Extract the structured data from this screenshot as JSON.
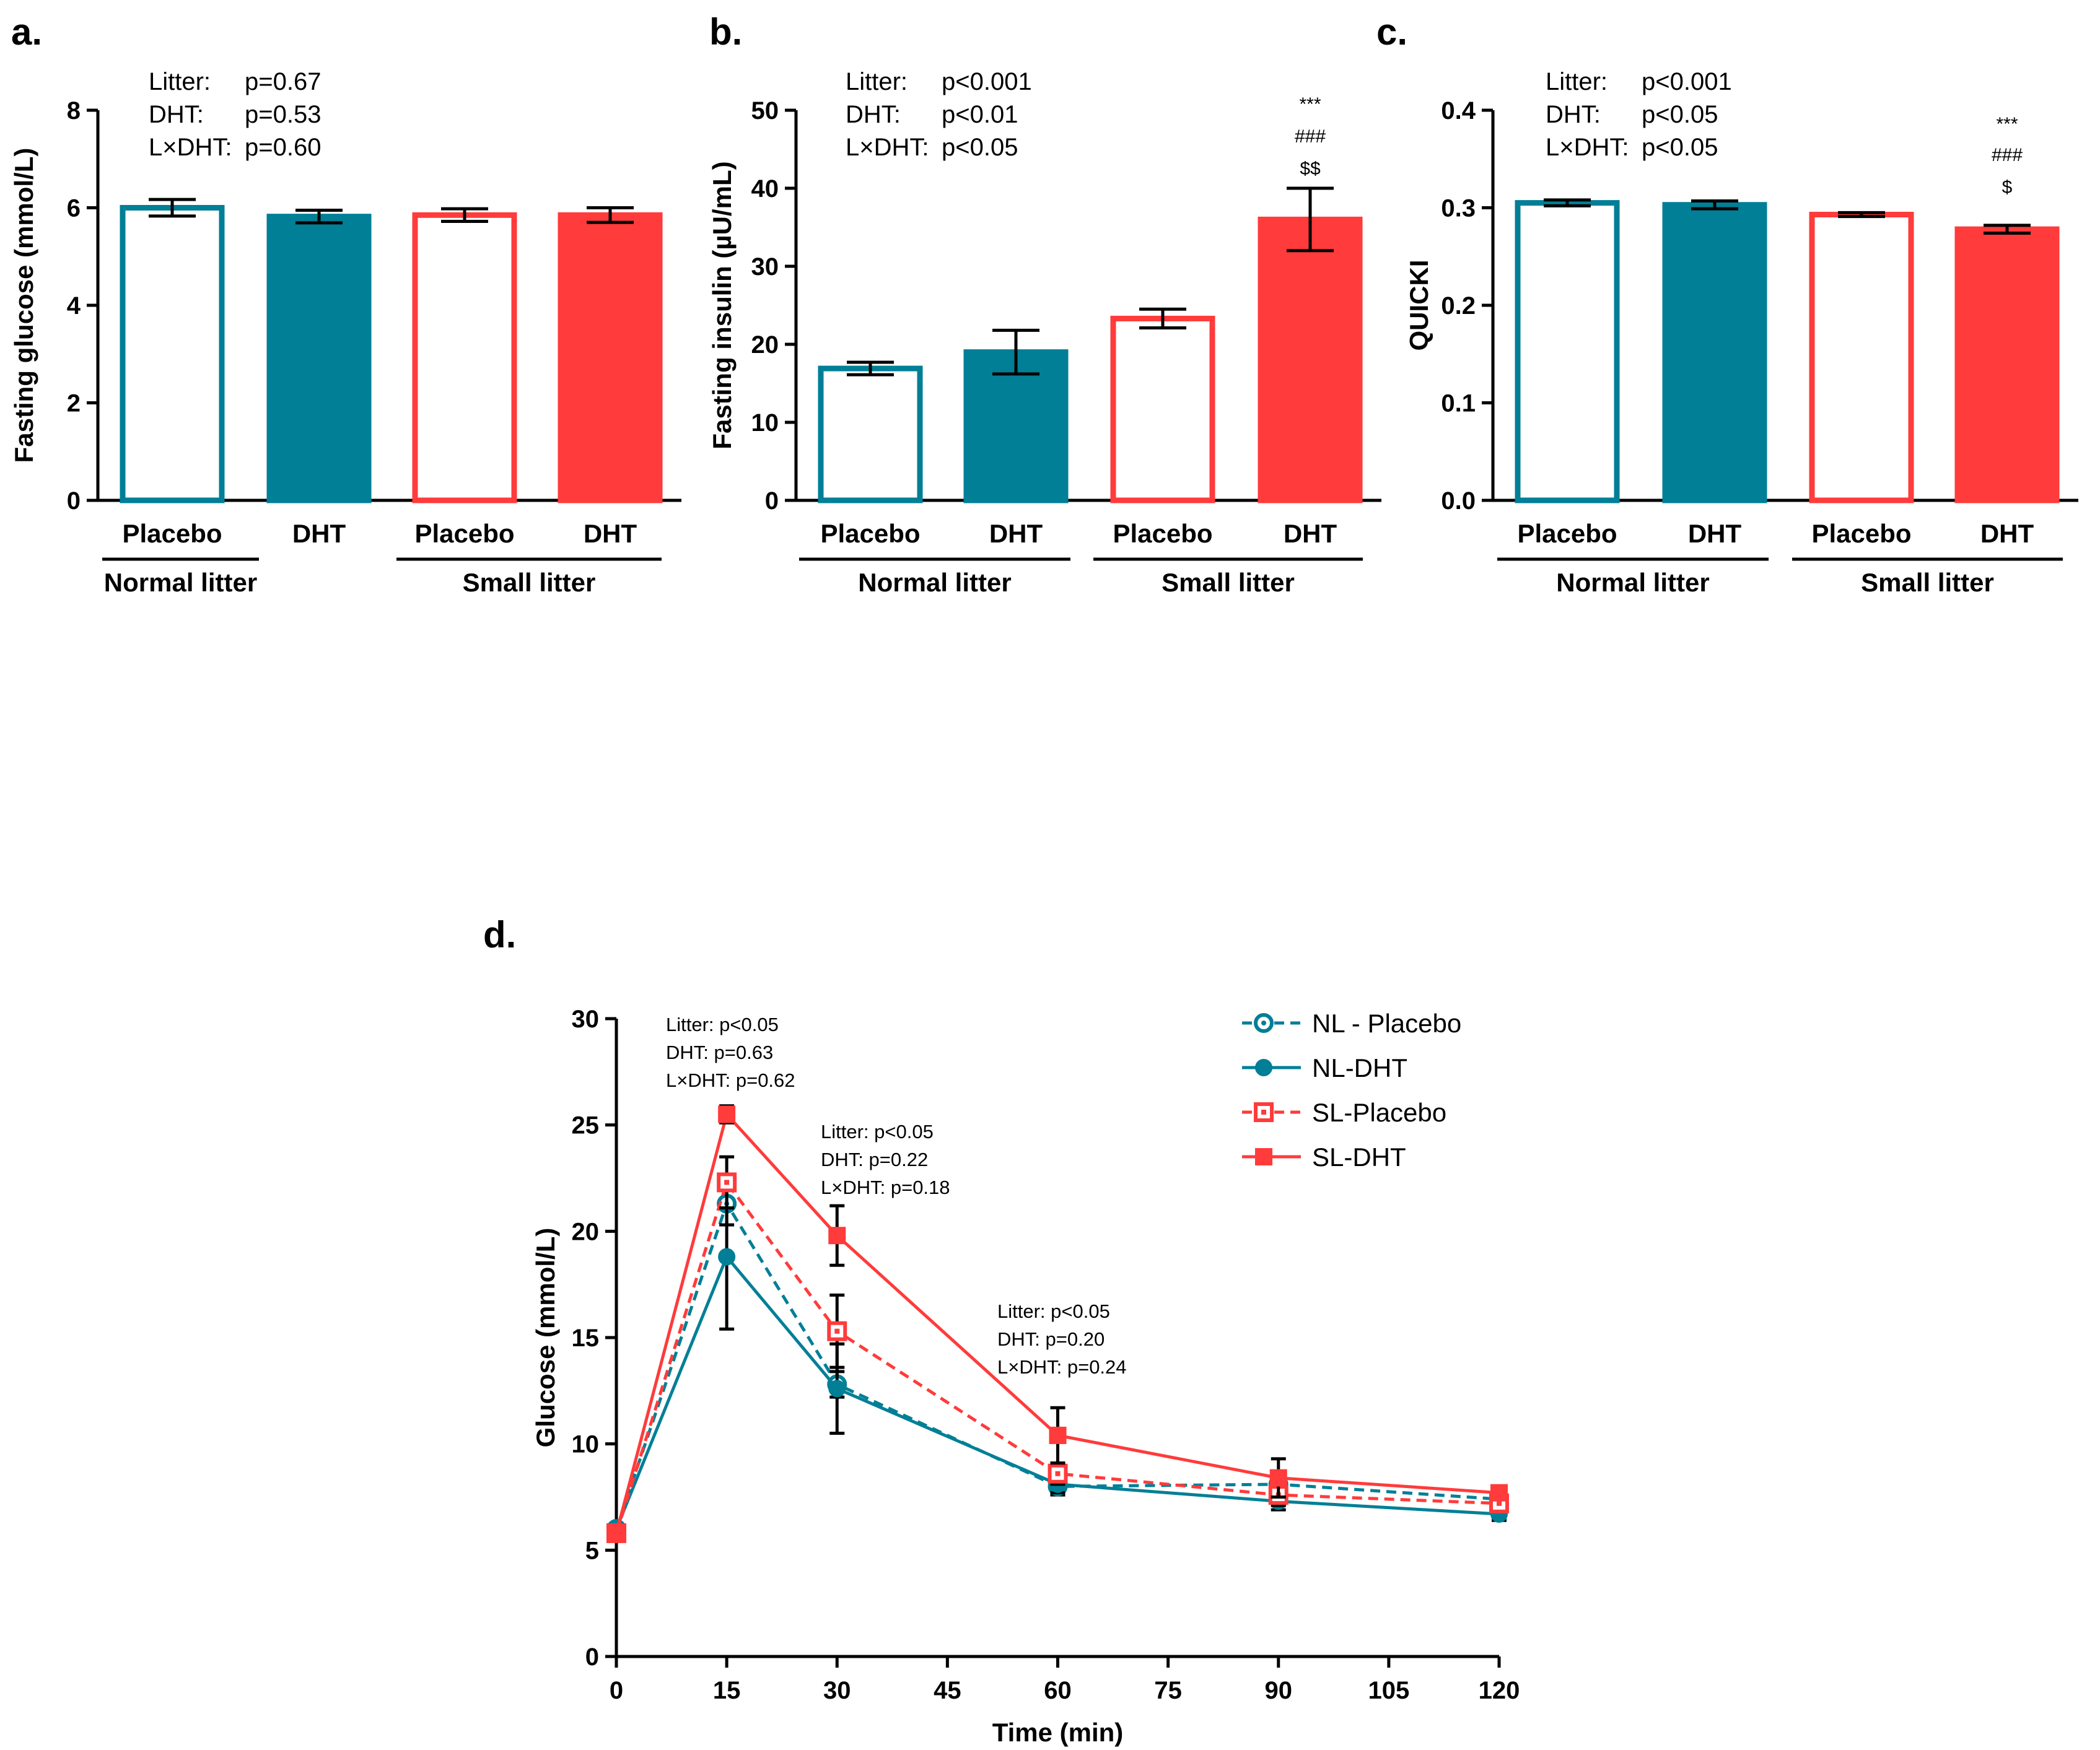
{
  "colors": {
    "teal": "#007f96",
    "red": "#ff3b3b",
    "axis": "#000000"
  },
  "chart_data": [
    {
      "panel": "a.",
      "type": "bar",
      "ylabel": "Fasting glucose (mmol/L)",
      "ylim": [
        0,
        8
      ],
      "yticks": [
        "0",
        "2",
        "4",
        "6",
        "8"
      ],
      "categories": [
        "Placebo",
        "DHT",
        "Placebo",
        "DHT"
      ],
      "groups": [
        "Normal litter",
        "Small litter"
      ],
      "values": [
        6.0,
        5.82,
        5.85,
        5.85
      ],
      "errors": [
        0.17,
        0.13,
        0.13,
        0.15
      ],
      "stats": [
        {
          "label": "Litter:",
          "value": "p=0.67"
        },
        {
          "label": "DHT:",
          "value": "p=0.53"
        },
        {
          "label": "L×DHT:",
          "value": "p=0.60"
        }
      ],
      "significance": []
    },
    {
      "panel": "b.",
      "type": "bar",
      "ylabel": "Fasting insulin (µU/mL)",
      "ylim": [
        0,
        50
      ],
      "yticks": [
        "0",
        "10",
        "20",
        "30",
        "40",
        "50"
      ],
      "categories": [
        "Placebo",
        "DHT",
        "Placebo",
        "DHT"
      ],
      "groups": [
        "Normal litter",
        "Small litter"
      ],
      "values": [
        16.9,
        19.0,
        23.3,
        36.0
      ],
      "errors": [
        0.8,
        2.8,
        1.2,
        4.0
      ],
      "stats": [
        {
          "label": "Litter:",
          "value": "p<0.001"
        },
        {
          "label": "DHT:",
          "value": "p<0.01"
        },
        {
          "label": "L×DHT:",
          "value": "p<0.05"
        }
      ],
      "significance": [
        "***",
        "###",
        "$$"
      ]
    },
    {
      "panel": "c.",
      "type": "bar",
      "ylabel": "QUICKI",
      "ylim": [
        0,
        0.4
      ],
      "yticks": [
        "0.0",
        "0.1",
        "0.2",
        "0.3",
        "0.4"
      ],
      "categories": [
        "Placebo",
        "DHT",
        "Placebo",
        "DHT"
      ],
      "groups": [
        "Normal litter",
        "Small litter"
      ],
      "values": [
        0.305,
        0.303,
        0.293,
        0.278
      ],
      "errors": [
        0.003,
        0.004,
        0.002,
        0.004
      ],
      "stats": [
        {
          "label": "Litter:",
          "value": "p<0.001"
        },
        {
          "label": "DHT:",
          "value": "p<0.05"
        },
        {
          "label": "L×DHT:",
          "value": "p<0.05"
        }
      ],
      "significance": [
        "***",
        "###",
        "$"
      ]
    },
    {
      "panel": "d.",
      "type": "line",
      "xlabel": "Time (min)",
      "ylabel": "Glucose (mmol/L)",
      "xlim": [
        0,
        120
      ],
      "ylim": [
        0,
        30
      ],
      "xticks": [
        "0",
        "15",
        "30",
        "45",
        "60",
        "75",
        "90",
        "105",
        "120"
      ],
      "yticks": [
        "0",
        "5",
        "10",
        "15",
        "20",
        "25",
        "30"
      ],
      "x": [
        0,
        15,
        30,
        60,
        90,
        120
      ],
      "series": [
        {
          "name": "NL - Placebo",
          "values": [
            6.0,
            21.3,
            12.8,
            8.0,
            8.1,
            7.4
          ],
          "errors": [
            0.2,
            1.0,
            0.6,
            0.4,
            0.6,
            0.3
          ],
          "color": "#007f96",
          "dashed": true,
          "marker": "circle-open"
        },
        {
          "name": "NL-DHT",
          "values": [
            6.0,
            18.8,
            12.6,
            8.1,
            7.3,
            6.7
          ],
          "errors": [
            0.2,
            3.4,
            2.1,
            0.4,
            0.4,
            0.3
          ],
          "color": "#007f96",
          "dashed": false,
          "marker": "circle-filled"
        },
        {
          "name": "SL-Placebo",
          "values": [
            5.8,
            22.3,
            15.3,
            8.6,
            7.6,
            7.2
          ],
          "errors": [
            0.2,
            1.2,
            1.7,
            0.5,
            0.5,
            0.3
          ],
          "color": "#ff3b3b",
          "dashed": true,
          "marker": "square-open"
        },
        {
          "name": "SL-DHT",
          "values": [
            5.8,
            25.5,
            19.8,
            10.4,
            8.4,
            7.7
          ],
          "errors": [
            0.2,
            0.4,
            1.4,
            1.3,
            0.9,
            0.3
          ],
          "color": "#ff3b3b",
          "dashed": false,
          "marker": "square-filled"
        }
      ],
      "annotations": [
        {
          "x": 15,
          "lines": [
            "Litter: p<0.05",
            "DHT: p=0.63",
            "L×DHT: p=0.62"
          ]
        },
        {
          "x": 30,
          "lines": [
            "Litter: p<0.05",
            "DHT: p=0.22",
            "L×DHT: p=0.18"
          ]
        },
        {
          "x": 60,
          "lines": [
            "Litter: p<0.05",
            "DHT: p=0.20",
            "L×DHT: p=0.24"
          ]
        }
      ]
    }
  ]
}
